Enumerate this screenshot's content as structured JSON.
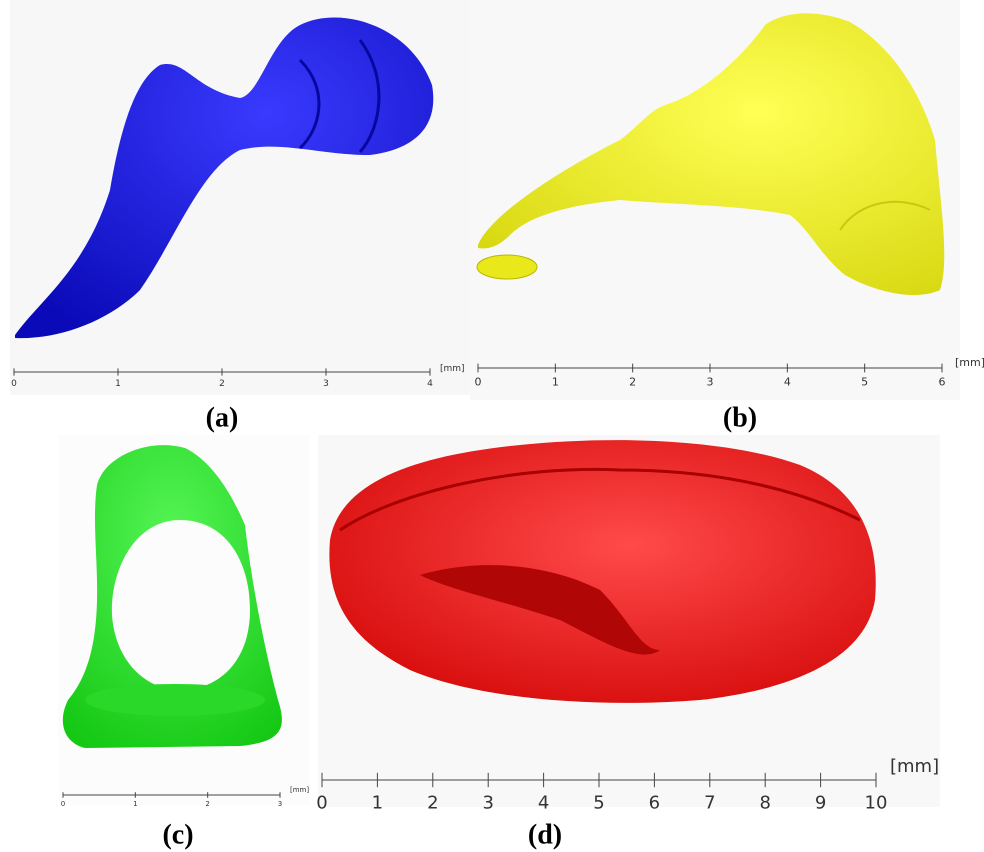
{
  "panels": [
    {
      "label": "(a)",
      "scale": {
        "unit": "[mm]",
        "ticks": [
          0,
          1,
          2,
          3,
          4
        ]
      }
    },
    {
      "label": "(b)",
      "scale": {
        "unit": "[mm]",
        "ticks": [
          0,
          1,
          2,
          3,
          4,
          5,
          6
        ]
      }
    },
    {
      "label": "(c)",
      "scale": {
        "unit": "[mm]",
        "ticks": [
          0,
          1,
          2,
          3
        ]
      }
    },
    {
      "label": "(d)",
      "scale": {
        "unit": "[mm]",
        "ticks": [
          0,
          1,
          2,
          3,
          4,
          5,
          6,
          7,
          8,
          9,
          10
        ]
      }
    }
  ]
}
